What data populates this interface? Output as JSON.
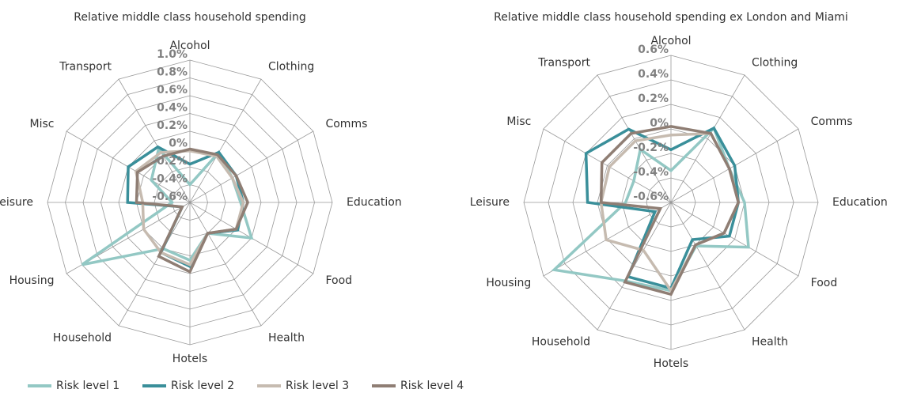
{
  "chart_data": [
    {
      "type": "radar",
      "title": "Relative middle class household spending",
      "categories": [
        "Alcohol",
        "Clothing",
        "Comms",
        "Education",
        "Food",
        "Health",
        "Hotels",
        "Household",
        "Housing",
        "Leisure",
        "Misc",
        "Transport"
      ],
      "ylim": [
        -0.6,
        1.0
      ],
      "yticks": [
        {
          "value": -0.6,
          "label": "-0.6%"
        },
        {
          "value": -0.4,
          "label": "-0.4%"
        },
        {
          "value": -0.2,
          "label": "-0.2%"
        },
        {
          "value": 0,
          "label": "0%"
        },
        {
          "value": 0.2,
          "label": "0.2%"
        },
        {
          "value": 0.4,
          "label": "0.4%"
        },
        {
          "value": 0.6,
          "label": "0.6%"
        },
        {
          "value": 0.8,
          "label": "0.8%"
        },
        {
          "value": 1.0,
          "label": "1.0%"
        }
      ],
      "series": [
        {
          "name": "Risk level 1",
          "color": "#93c8c4",
          "values": [
            -0.4,
            0.05,
            -0.05,
            -0.03,
            0.2,
            -0.2,
            0.05,
            0.0,
            0.8,
            -0.4,
            -0.1,
            0.1
          ]
        },
        {
          "name": "Risk level 2",
          "color": "#3a8f9a",
          "values": [
            -0.17,
            0.05,
            0.0,
            0.0,
            0.02,
            -0.2,
            0.12,
            0.05,
            -0.5,
            0.1,
            0.2,
            0.12
          ]
        },
        {
          "name": "Risk level 3",
          "color": "#c6bbb0",
          "values": [
            -0.02,
            0.0,
            -0.05,
            0.0,
            0.0,
            -0.2,
            0.1,
            0.05,
            0.0,
            -0.07,
            0.1,
            0.05
          ]
        },
        {
          "name": "Risk level 4",
          "color": "#8f7e74",
          "values": [
            0.0,
            0.02,
            0.0,
            0.05,
            0.0,
            -0.2,
            0.18,
            0.1,
            -0.5,
            0.0,
            0.08,
            0.0
          ]
        }
      ]
    },
    {
      "type": "radar",
      "title": "Relative middle class household spending ex London and Miami",
      "categories": [
        "Alcohol",
        "Clothing",
        "Comms",
        "Education",
        "Food",
        "Health",
        "Hotels",
        "Household",
        "Housing",
        "Leisure",
        "Misc",
        "Transport"
      ],
      "ylim": [
        -0.6,
        0.6
      ],
      "yticks": [
        {
          "value": -0.6,
          "label": "-0.6%"
        },
        {
          "value": -0.4,
          "label": "-0.4%"
        },
        {
          "value": -0.2,
          "label": "-0.2%"
        },
        {
          "value": 0,
          "label": "0%"
        },
        {
          "value": 0.2,
          "label": "0.2%"
        },
        {
          "value": 0.4,
          "label": "0.4%"
        },
        {
          "value": 0.6,
          "label": "0.6%"
        }
      ],
      "series": [
        {
          "color": "#93c8c4",
          "values": [
            -0.34,
            0.1,
            -0.05,
            0.0,
            0.13,
            -0.19,
            0.12,
            0.14,
            0.5,
            -0.23,
            -0.25,
            -0.1
          ]
        },
        {
          "color": "#3a8f9a",
          "values": [
            -0.17,
            0.1,
            0.0,
            -0.05,
            -0.05,
            -0.25,
            0.1,
            0.1,
            -0.45,
            0.08,
            0.2,
            0.09
          ]
        },
        {
          "color": "#c6bbb0",
          "values": [
            -0.05,
            0.05,
            -0.05,
            -0.05,
            -0.1,
            -0.2,
            0.12,
            -0.15,
            0.01,
            -0.03,
            -0.02,
            -0.02
          ]
        },
        {
          "color": "#8f7e74",
          "values": [
            0.02,
            0.05,
            -0.05,
            -0.05,
            -0.1,
            -0.2,
            0.15,
            0.15,
            -0.5,
            -0.03,
            0.05,
            0.05
          ]
        }
      ]
    }
  ]
}
